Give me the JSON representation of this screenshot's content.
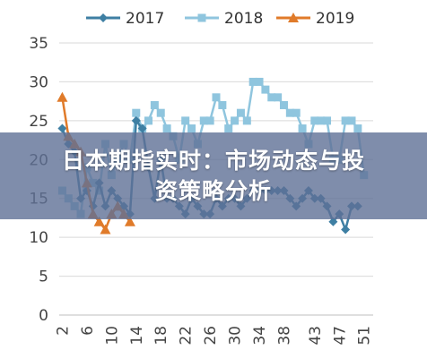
{
  "banner": {
    "line1": "日本期指实时：市场动态与投",
    "line2": "资策略分析"
  },
  "chart_data": {
    "type": "line",
    "x": [
      2,
      3,
      4,
      5,
      6,
      7,
      8,
      9,
      10,
      11,
      12,
      13,
      14,
      15,
      16,
      17,
      18,
      19,
      20,
      21,
      22,
      23,
      24,
      25,
      26,
      27,
      28,
      29,
      30,
      31,
      32,
      33,
      34,
      35,
      36,
      37,
      38,
      39,
      40,
      41,
      42,
      43,
      44,
      45,
      46,
      47,
      48,
      49,
      50,
      51,
      52
    ],
    "x_ticks": [
      "2",
      "6",
      "10",
      "14",
      "18",
      "22",
      "26",
      "30",
      "34",
      "38",
      "43",
      "47",
      "51"
    ],
    "x_tick_values": [
      2,
      6,
      10,
      14,
      18,
      22,
      26,
      30,
      34,
      38,
      43,
      47,
      51
    ],
    "xlim": [
      1.5,
      52.5
    ],
    "ylim": [
      0,
      35
    ],
    "y_ticks": [
      "0",
      "5",
      "10",
      "15",
      "20",
      "25",
      "30",
      "35"
    ],
    "y_tick_values": [
      0,
      5,
      10,
      15,
      20,
      25,
      30,
      35
    ],
    "grid": "horizontal",
    "legend_position": "top",
    "series": [
      {
        "name": "2017",
        "color": "#3e7fa3",
        "marker": "diamond",
        "values": [
          24,
          22,
          21,
          15,
          16,
          14,
          17,
          14,
          16,
          15,
          14,
          13,
          25,
          24,
          19,
          15,
          20,
          15,
          15,
          14,
          13,
          15,
          14,
          13,
          13,
          15,
          14,
          15,
          15,
          14,
          15,
          16,
          16,
          16,
          16,
          16,
          16,
          15,
          14,
          15,
          16,
          15,
          15,
          14,
          12,
          13,
          11,
          14,
          14,
          null,
          null
        ]
      },
      {
        "name": "2018",
        "color": "#8fc5de",
        "marker": "square",
        "values": [
          16,
          15,
          14,
          13,
          19,
          17,
          16,
          22,
          18,
          20,
          22,
          20,
          26,
          24,
          25,
          27,
          26,
          24,
          23,
          20,
          25,
          24,
          22,
          25,
          25,
          28,
          27,
          24,
          25,
          26,
          25,
          30,
          30,
          29,
          28,
          28,
          27,
          26,
          26,
          24,
          22,
          25,
          25,
          25,
          20,
          20,
          25,
          25,
          24,
          18,
          null
        ]
      },
      {
        "name": "2019",
        "color": "#e07b2a",
        "marker": "triangle",
        "values": [
          28,
          23,
          22,
          21,
          17,
          13,
          12,
          11,
          13,
          14,
          13,
          12,
          null,
          null,
          null,
          null,
          null,
          null,
          null,
          null,
          null,
          null,
          null,
          null,
          null,
          null,
          null,
          null,
          null,
          null,
          null,
          null,
          null,
          null,
          null,
          null,
          null,
          null,
          null,
          null,
          null,
          null,
          null,
          null,
          null,
          null,
          null,
          null,
          null,
          null,
          null
        ]
      }
    ]
  }
}
